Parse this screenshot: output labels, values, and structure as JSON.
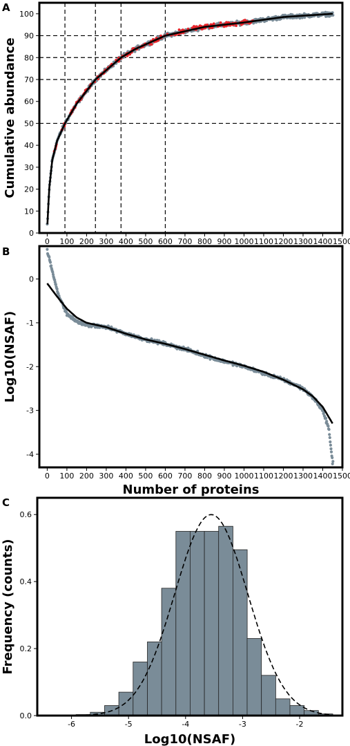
{
  "chart_data": [
    {
      "panel": "A",
      "type": "scatter",
      "ylabel": "Cumulative abundance",
      "xlabel": "",
      "xlim": [
        -40,
        1500
      ],
      "ylim": [
        0,
        105
      ],
      "xticks": [
        0,
        100,
        200,
        300,
        400,
        500,
        600,
        700,
        800,
        900,
        1000,
        1100,
        1200,
        1300,
        1400,
        1500
      ],
      "yticks": [
        0,
        10,
        20,
        30,
        40,
        50,
        60,
        70,
        80,
        90,
        100
      ],
      "grid": false,
      "reference_lines": {
        "vertical": [
          90,
          245,
          375,
          600
        ],
        "horizontal": [
          50,
          70,
          80,
          90
        ]
      },
      "series": [
        {
          "color": "#7a8c98",
          "role": "points",
          "x": [
            1,
            10,
            25,
            50,
            90,
            150,
            245,
            375,
            450,
            600,
            800,
            1000,
            1200,
            1453
          ],
          "values": [
            4,
            20,
            33,
            42,
            50,
            59,
            70,
            80,
            84,
            90,
            94,
            96,
            98.5,
            100
          ]
        },
        {
          "color": "#e8252b",
          "role": "highlighted points",
          "x": [
            60,
            120,
            200,
            280,
            350,
            420,
            500,
            580,
            650,
            720,
            800,
            880,
            960,
            1040
          ],
          "values": [
            46,
            55,
            64,
            73,
            78,
            82,
            86,
            89,
            91,
            93,
            94,
            95,
            96,
            97
          ]
        },
        {
          "color": "#000000",
          "role": "fit",
          "x": [
            1,
            10,
            25,
            50,
            90,
            150,
            245,
            375,
            450,
            600,
            800,
            1000,
            1200,
            1453
          ],
          "values": [
            4,
            20,
            33,
            42,
            50,
            59,
            70,
            80,
            84,
            90,
            94,
            96,
            98.5,
            100
          ]
        }
      ]
    },
    {
      "panel": "B",
      "type": "scatter",
      "ylabel": "Log10(NSAF)",
      "xlabel": "Number of proteins",
      "xlim": [
        -40,
        1500
      ],
      "ylim": [
        -4.3,
        0.75
      ],
      "xticks": [
        0,
        100,
        200,
        300,
        400,
        500,
        600,
        700,
        800,
        900,
        1000,
        1100,
        1200,
        1300,
        1400,
        1500
      ],
      "yticks": [
        0,
        -1,
        -2,
        -3,
        -4
      ],
      "grid": false,
      "series": [
        {
          "color": "#7a8c98",
          "role": "points",
          "x": [
            0,
            30,
            60,
            100,
            150,
            200,
            300,
            400,
            500,
            600,
            700,
            800,
            900,
            1000,
            1100,
            1200,
            1300,
            1350,
            1400,
            1430,
            1450
          ],
          "values": [
            0.65,
            0.1,
            -0.4,
            -0.8,
            -0.97,
            -1.05,
            -1.1,
            -1.25,
            -1.38,
            -1.48,
            -1.6,
            -1.75,
            -1.88,
            -2.0,
            -2.15,
            -2.3,
            -2.5,
            -2.7,
            -3.0,
            -3.4,
            -4.2
          ]
        },
        {
          "color": "#000000",
          "role": "fit",
          "x": [
            0,
            50,
            100,
            150,
            200,
            300,
            400,
            500,
            600,
            700,
            800,
            900,
            1000,
            1100,
            1200,
            1300,
            1350,
            1400,
            1453
          ],
          "values": [
            -0.1,
            -0.4,
            -0.68,
            -0.88,
            -1.0,
            -1.1,
            -1.25,
            -1.38,
            -1.48,
            -1.6,
            -1.73,
            -1.86,
            -1.98,
            -2.12,
            -2.3,
            -2.52,
            -2.68,
            -2.92,
            -3.32
          ]
        }
      ]
    },
    {
      "panel": "C",
      "type": "bar",
      "ylabel": "Frequency (counts)",
      "xlabel": "Log10(NSAF)",
      "xlim": [
        -6.6,
        -1.25
      ],
      "ylim": [
        0,
        0.65
      ],
      "xticks": [
        -6,
        -5,
        -4,
        -3,
        -2
      ],
      "yticks": [
        0.0,
        0.2,
        0.4,
        0.6
      ],
      "ytick_labels": [
        "0.0",
        "0.2",
        "0.4",
        "0.6"
      ],
      "bin_edges": [
        -6.42,
        -6.17,
        -5.92,
        -5.67,
        -5.42,
        -5.17,
        -4.92,
        -4.67,
        -4.42,
        -4.17,
        -3.92,
        -3.67,
        -3.42,
        -3.17,
        -2.92,
        -2.67,
        -2.42,
        -2.17,
        -1.92,
        -1.67,
        -1.42
      ],
      "values": [
        0.0,
        0.0,
        0.003,
        0.01,
        0.03,
        0.07,
        0.16,
        0.22,
        0.38,
        0.55,
        0.55,
        0.55,
        0.565,
        0.495,
        0.23,
        0.12,
        0.05,
        0.03,
        0.015,
        0.005
      ],
      "bar_color": "#7a8c98",
      "fit_curve": {
        "style": "dashed",
        "color": "#000000",
        "mean": -3.55,
        "sd": 0.64,
        "peak": 0.6
      }
    }
  ],
  "panels": {
    "a": {
      "letter": "A"
    },
    "b": {
      "letter": "B"
    },
    "c": {
      "letter": "C"
    }
  }
}
